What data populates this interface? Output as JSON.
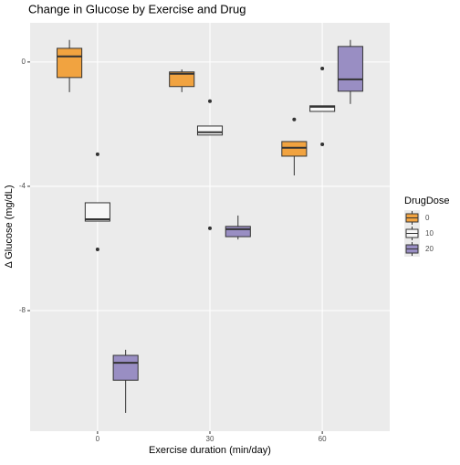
{
  "chart_data": {
    "type": "box",
    "title": "Change in Glucose by Exercise and Drug",
    "x_label": "Exercise duration (min/day)",
    "y_label": "Δ Glucose (mg/dL)",
    "legend_title": "DrugDose",
    "legend_position": "right",
    "grid": true,
    "categories": [
      "0",
      "30",
      "60"
    ],
    "ylim": [
      -11.88,
      1.26
    ],
    "yticks": [
      -8,
      -4,
      0
    ],
    "series": [
      {
        "name": "0",
        "color": "#f1a340",
        "boxes": [
          {
            "low": -0.97,
            "q1": -0.5,
            "median": 0.18,
            "q3": 0.44,
            "high": 0.71
          },
          {
            "low": -0.97,
            "q1": -0.79,
            "median": -0.38,
            "q3": -0.32,
            "high": -0.24
          },
          {
            "low": -3.65,
            "q1": -3.03,
            "median": -2.76,
            "q3": -2.56,
            "high": -2.56,
            "outliers": [
              -1.85
            ]
          }
        ]
      },
      {
        "name": "10",
        "color": "#f7f7f7",
        "boxes": [
          {
            "low": -5.12,
            "q1": -5.12,
            "median": -5.06,
            "q3": -4.53,
            "high": -4.53,
            "outliers": [
              -2.97,
              -6.03
            ]
          },
          {
            "low": -2.35,
            "q1": -2.35,
            "median": -2.26,
            "q3": -2.06,
            "high": -2.06,
            "outliers": [
              -1.26,
              -5.35
            ]
          },
          {
            "low": -1.59,
            "q1": -1.59,
            "median": -1.44,
            "q3": -1.41,
            "high": -1.41,
            "outliers": [
              -0.21,
              -2.65
            ]
          }
        ]
      },
      {
        "name": "20",
        "color": "#998ec3",
        "boxes": [
          {
            "low": -11.29,
            "q1": -10.24,
            "median": -9.68,
            "q3": -9.44,
            "high": -9.26
          },
          {
            "low": -5.71,
            "q1": -5.62,
            "median": -5.38,
            "q3": -5.29,
            "high": -4.94
          },
          {
            "low": -1.35,
            "q1": -0.94,
            "median": -0.56,
            "q3": 0.5,
            "high": 0.71
          }
        ]
      }
    ]
  }
}
